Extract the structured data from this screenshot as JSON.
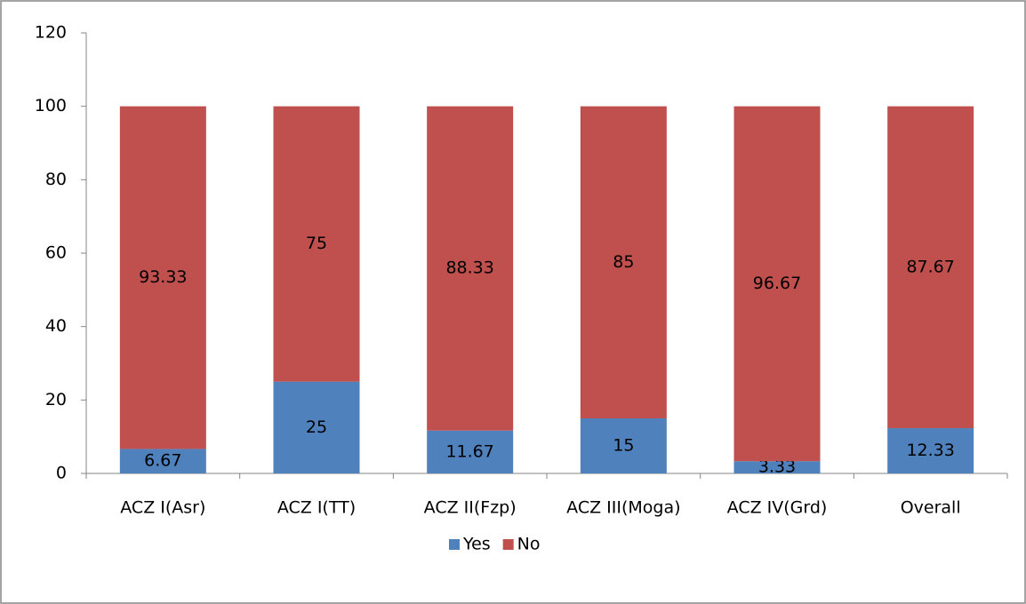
{
  "chart_data": {
    "type": "bar",
    "stacked": true,
    "categories": [
      "ACZ I(Asr)",
      "ACZ I(TT)",
      "ACZ II(Fzp)",
      "ACZ III(Moga)",
      "ACZ IV(Grd)",
      "Overall"
    ],
    "series": [
      {
        "name": "Yes",
        "color": "#4f81bd",
        "values": [
          6.67,
          25,
          11.67,
          15,
          3.33,
          12.33
        ]
      },
      {
        "name": "No",
        "color": "#c0504d",
        "values": [
          93.33,
          75,
          88.33,
          85,
          96.67,
          87.67
        ]
      }
    ],
    "ylim": [
      0,
      120
    ],
    "yticks": [
      0,
      20,
      40,
      60,
      80,
      100,
      120
    ],
    "grid": false,
    "legend": "bottom"
  }
}
